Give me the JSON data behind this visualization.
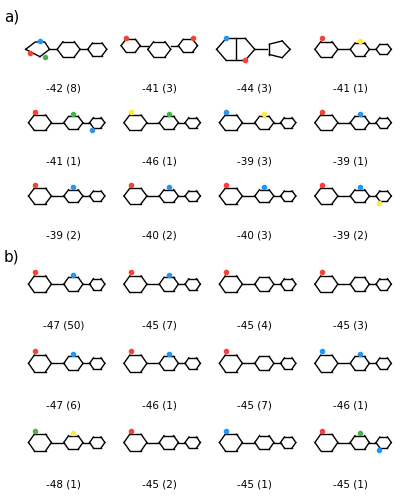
{
  "section_a_label": "a)",
  "section_b_label": "b)",
  "section_a_labels": [
    "-42 (8)",
    "-41 (3)",
    "-44 (3)",
    "-41 (1)",
    "-41 (1)",
    "-46 (1)",
    "-39 (3)",
    "-39 (1)",
    "-39 (2)",
    "-40 (2)",
    "-40 (3)",
    "-39 (2)"
  ],
  "section_b_labels": [
    "-47 (50)",
    "-45 (7)",
    "-45 (4)",
    "-45 (3)",
    "-47 (6)",
    "-46 (1)",
    "-45 (7)",
    "-46 (1)",
    "-48 (1)",
    "-45 (2)",
    "-45 (1)",
    "-45 (1)"
  ],
  "background_color": "#ffffff",
  "label_fontsize": 7.5,
  "section_fontsize": 11,
  "grid_cols": 4,
  "grid_rows_a": 3,
  "grid_rows_b": 3,
  "fig_width": 4.02,
  "fig_height": 5.0,
  "dpi": 100
}
